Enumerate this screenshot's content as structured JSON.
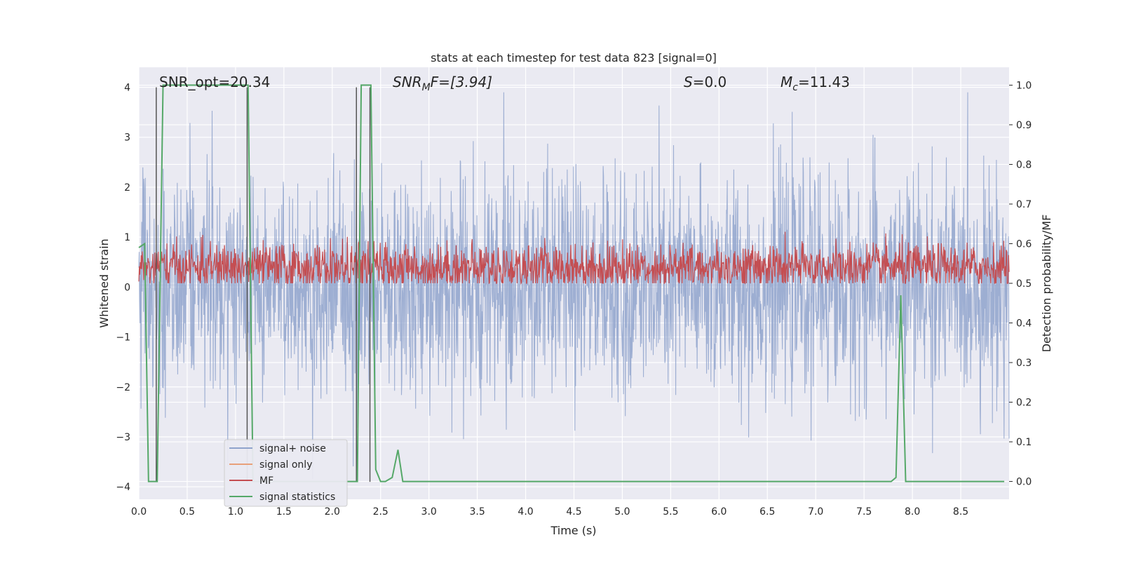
{
  "chart_data": {
    "type": "line",
    "title": "stats at each timestep for test data 823 [signal=0]",
    "xlabel": "Time (s)",
    "ylabel": "Whitened strain",
    "ylabel_right": "Detection probability/MF",
    "xlim": [
      0.0,
      9.0
    ],
    "ylim": [
      -4.25,
      4.4
    ],
    "ylim_right": [
      -0.045,
      1.045
    ],
    "x_ticks": [
      "0.0",
      "0.5",
      "1.0",
      "1.5",
      "2.0",
      "2.5",
      "3.0",
      "3.5",
      "4.0",
      "4.5",
      "5.0",
      "5.5",
      "6.0",
      "6.5",
      "7.0",
      "7.5",
      "8.0",
      "8.5"
    ],
    "y_ticks": [
      "−4",
      "−3",
      "−2",
      "−1",
      "0",
      "1",
      "2",
      "3",
      "4"
    ],
    "y_right_ticks": [
      "0.0",
      "0.1",
      "0.2",
      "0.3",
      "0.4",
      "0.5",
      "0.6",
      "0.7",
      "0.8",
      "0.9",
      "1.0"
    ],
    "grid": true,
    "legend_position": "lower-left",
    "annotations": {
      "snr_opt": "SNR_opt=20.34",
      "snr_mf_label": "SNR",
      "snr_mf_sub": "M",
      "snr_mf_rest": "F=[3.94]",
      "s_label": "S",
      "s_rest": "=0.0",
      "mc_label": "M",
      "mc_sub": "c",
      "mc_rest": "=11.43"
    },
    "vertical_lines_x": [
      0.18,
      1.12,
      2.25,
      2.39
    ],
    "series": [
      {
        "name": "signal+ noise",
        "color": "#8fa3cc",
        "axis": "left",
        "description_range": [
          -3.7,
          4.0
        ]
      },
      {
        "name": "signal only",
        "color": "#e8a07a",
        "axis": "left"
      },
      {
        "name": "MF",
        "color": "#c44e52",
        "axis": "right",
        "range": [
          0.5,
          0.63
        ]
      },
      {
        "name": "signal statistics",
        "color": "#55a868",
        "axis": "right",
        "x": [
          0.0,
          0.06,
          0.1,
          0.16,
          0.19,
          0.25,
          0.3,
          0.5,
          0.7,
          0.9,
          1.05,
          1.1,
          1.13,
          1.18,
          1.25,
          1.5,
          1.8,
          2.0,
          2.2,
          2.26,
          2.3,
          2.35,
          2.4,
          2.45,
          2.5,
          2.55,
          2.62,
          2.68,
          2.73,
          2.8,
          3.0,
          4.0,
          5.0,
          6.0,
          7.0,
          7.5,
          7.78,
          7.83,
          7.88,
          7.93,
          8.0,
          8.5,
          8.95
        ],
        "y": [
          0.59,
          0.6,
          0.0,
          0.0,
          0.0,
          1.0,
          1.0,
          1.0,
          1.0,
          1.0,
          1.0,
          1.0,
          1.0,
          0.0,
          0.0,
          0.0,
          0.0,
          0.0,
          0.0,
          0.0,
          1.0,
          1.0,
          1.0,
          0.03,
          0.0,
          0.0,
          0.01,
          0.08,
          0.0,
          0.0,
          0.0,
          0.0,
          0.0,
          0.0,
          0.0,
          0.0,
          0.0,
          0.01,
          0.47,
          0.0,
          0.0,
          0.0,
          0.0
        ]
      }
    ]
  }
}
